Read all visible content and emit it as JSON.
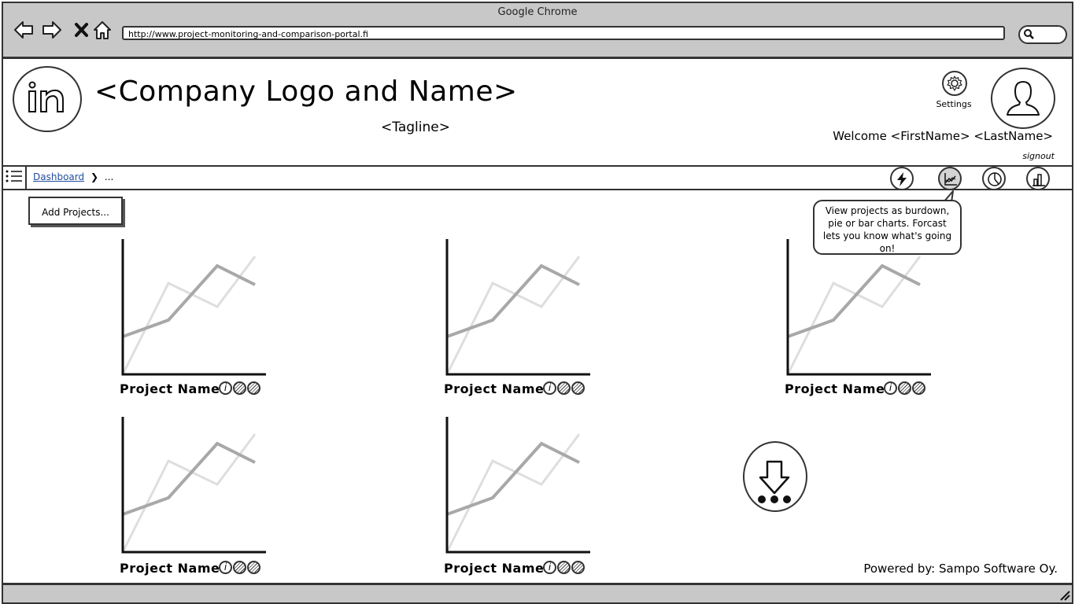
{
  "browser": {
    "window_title": "Google Chrome",
    "url": "http://www.project-monitoring-and-comparison-portal.fi"
  },
  "header": {
    "company": "<Company Logo and Name>",
    "tagline": "<Tagline>",
    "settings_label": "Settings",
    "welcome": "Welcome <FirstName> <LastName>",
    "signout": "signout"
  },
  "navbar": {
    "breadcrumb_link": "Dashboard",
    "breadcrumb_separator": "❯",
    "breadcrumb_more": "...",
    "view_buttons": [
      "lightning-icon",
      "burndown-chart-icon",
      "pie-chart-icon",
      "bar-chart-icon"
    ]
  },
  "actions": {
    "add_projects": "Add Projects..."
  },
  "tooltip": {
    "text": "View projects as burdown, pie or bar charts. Forcast lets you know what's going on!"
  },
  "projects": [
    {
      "name": "Project Name"
    },
    {
      "name": "Project Name"
    },
    {
      "name": "Project Name"
    },
    {
      "name": "Project Name"
    },
    {
      "name": "Project Name"
    }
  ],
  "footer": {
    "powered_by": "Powered by: Sampo Software Oy."
  }
}
